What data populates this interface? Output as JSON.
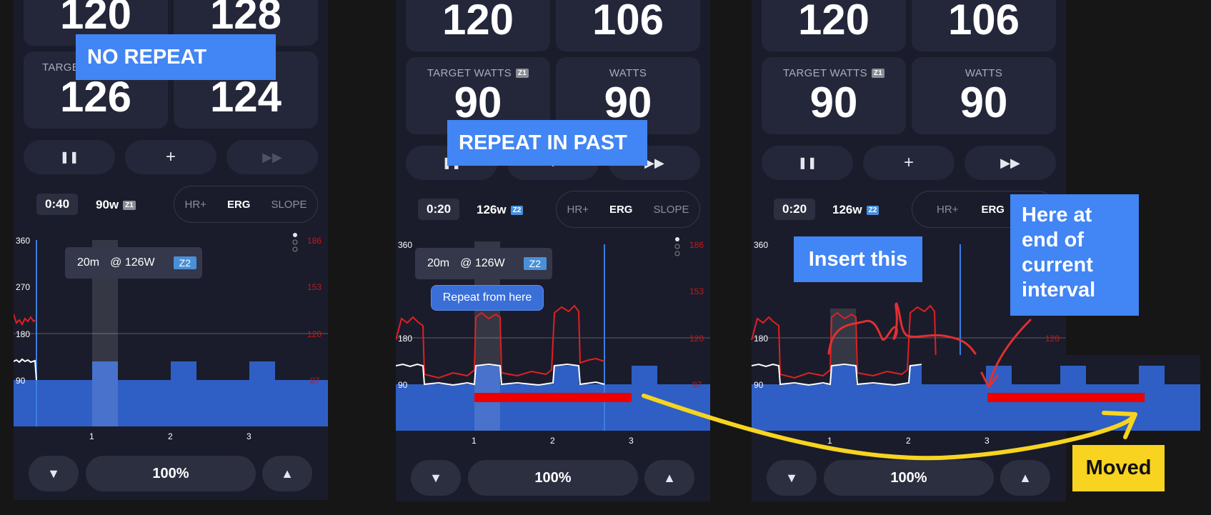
{
  "panels": [
    {
      "tiles": [
        {
          "label": "",
          "value": "120"
        },
        {
          "label": "",
          "value": "128"
        },
        {
          "label": "TARGE",
          "value": "126"
        },
        {
          "label": "",
          "value": "124"
        }
      ],
      "controls": {
        "pause": "❚❚",
        "add": "+",
        "skip": "▶▶"
      },
      "interval": {
        "time": "0:40",
        "watts": "90w",
        "zone": "Z1"
      },
      "modes": [
        "HR+",
        "ERG",
        "SLOPE"
      ],
      "active_mode": "ERG",
      "tooltip": {
        "duration": "20m",
        "power": "@ 126W",
        "zone": "Z2"
      },
      "axis_left": [
        "360",
        "270",
        "180",
        "90"
      ],
      "axis_right": [
        "186",
        "153",
        "120",
        "87"
      ],
      "x_ticks": [
        "1",
        "2",
        "3"
      ],
      "percent": "100%"
    },
    {
      "tiles": [
        {
          "label": "",
          "value": "120"
        },
        {
          "label": "",
          "value": "106"
        },
        {
          "label": "TARGET WATTS",
          "value": "90",
          "zone": "Z1"
        },
        {
          "label": "WATTS",
          "value": "90"
        }
      ],
      "controls": {
        "pause": "❚❚",
        "add": "+",
        "skip": "▶▶"
      },
      "interval": {
        "time": "0:20",
        "watts": "126w",
        "zone": "Z2"
      },
      "modes": [
        "HR+",
        "ERG",
        "SLOPE"
      ],
      "active_mode": "ERG",
      "tooltip": {
        "duration": "20m",
        "power": "@ 126W",
        "zone": "Z2"
      },
      "repeat_button": "Repeat from here",
      "axis_left": [
        "360",
        "180",
        "90"
      ],
      "axis_right": [
        "186",
        "153",
        "120",
        "87"
      ],
      "x_ticks": [
        "1",
        "2",
        "3"
      ],
      "percent": "100%"
    },
    {
      "tiles": [
        {
          "label": "",
          "value": "120"
        },
        {
          "label": "",
          "value": "106"
        },
        {
          "label": "TARGET WATTS",
          "value": "90",
          "zone": "Z1"
        },
        {
          "label": "WATTS",
          "value": "90"
        }
      ],
      "controls": {
        "pause": "❚❚",
        "add": "+",
        "skip": "▶▶"
      },
      "interval": {
        "time": "0:20",
        "watts": "126w",
        "zone": "Z2"
      },
      "modes": [
        "HR+",
        "ERG"
      ],
      "active_mode": "ERG",
      "axis_left": [
        "360",
        "180",
        "90"
      ],
      "axis_right": [
        "120"
      ],
      "x_ticks": [
        "1",
        "2",
        "3"
      ],
      "percent": "100%"
    }
  ],
  "annotations": {
    "no_repeat": "NO REPEAT",
    "repeat_in_past": "REPEAT IN PAST",
    "insert_this": "Insert this",
    "here_end": "Here at end of current interval",
    "moved": "Moved"
  },
  "colors": {
    "accent": "#4285f4",
    "hr_line": "#e02020",
    "zone_block": "#2f5fc4",
    "moved": "#f8d420"
  }
}
